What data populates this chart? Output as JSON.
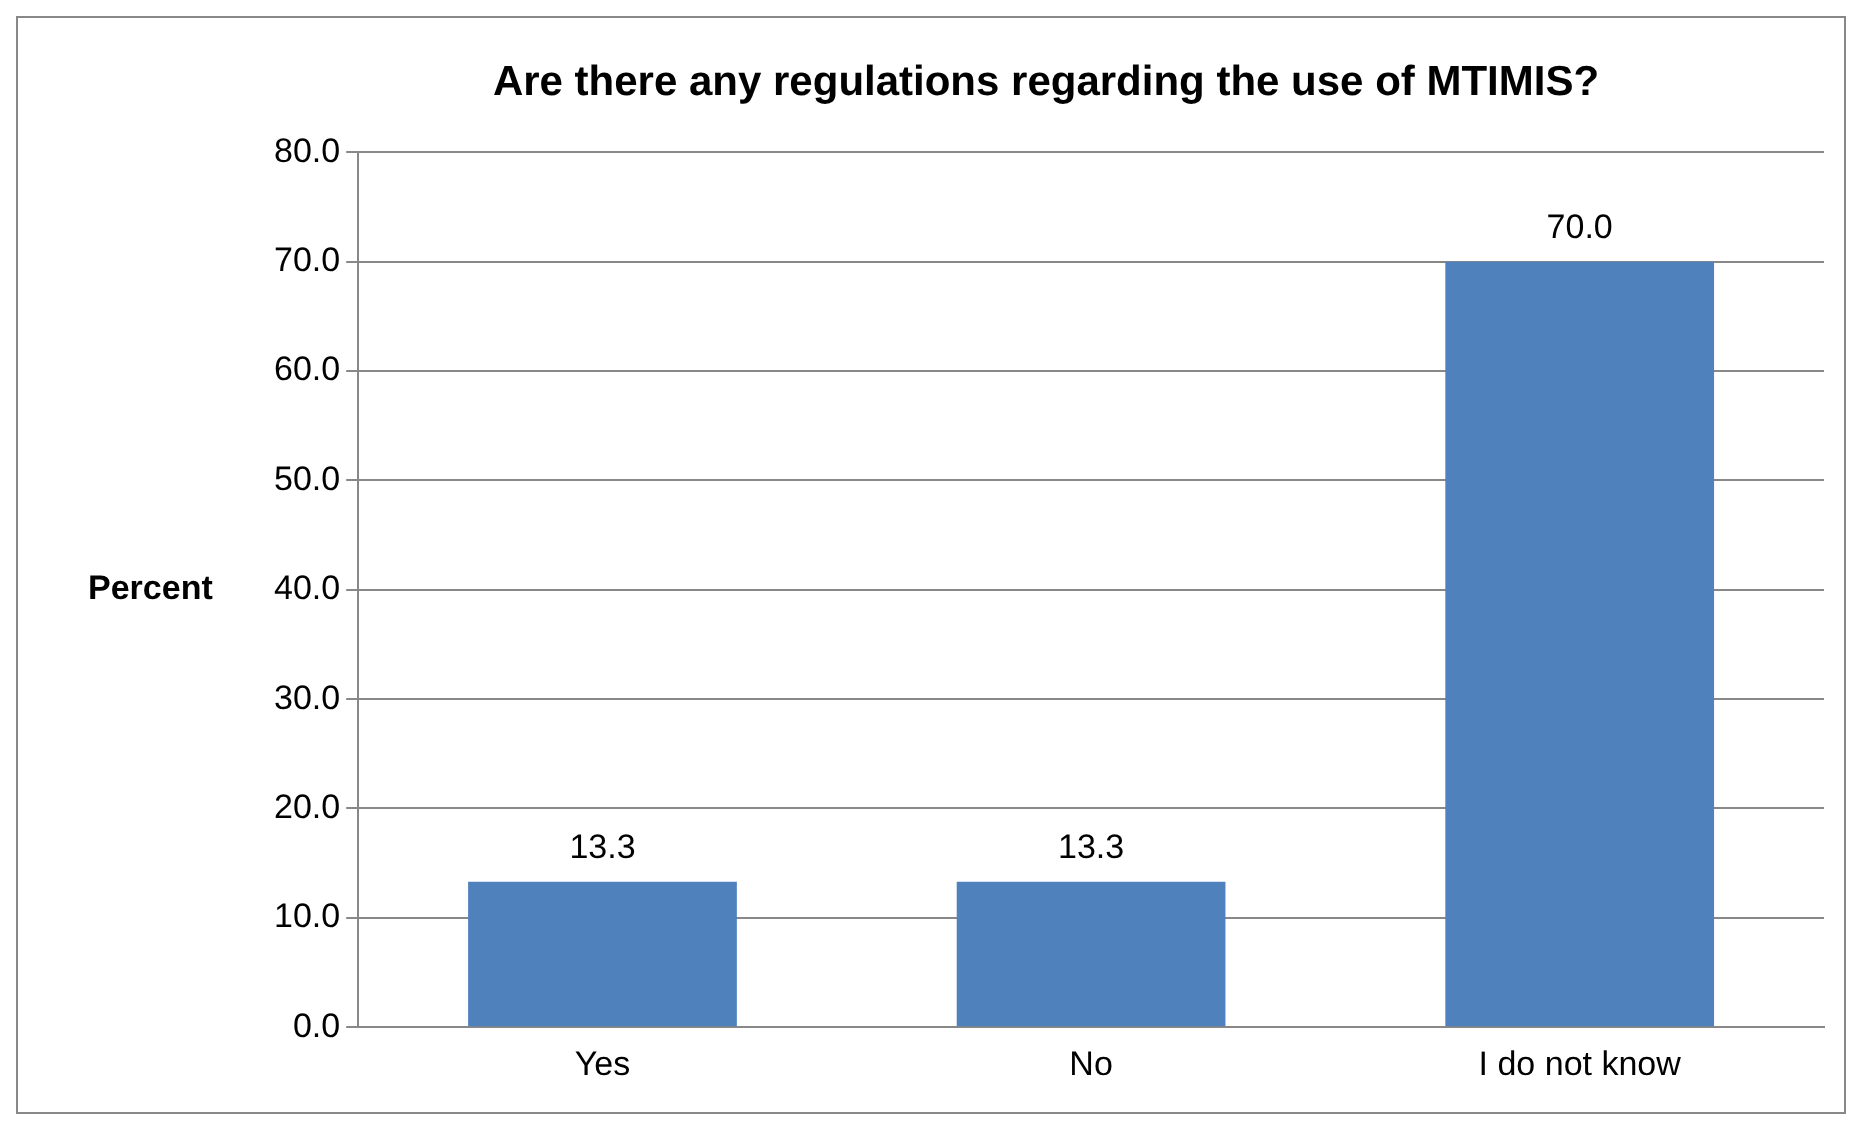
{
  "chart_data": {
    "type": "bar",
    "title": "Are there any regulations regarding the use of MTIMIS?",
    "ylabel": "Percent",
    "categories": [
      "Yes",
      "No",
      "I do not know"
    ],
    "values": [
      13.3,
      13.3,
      70.0
    ],
    "color": "#4f81bd",
    "value_labels": [
      "13.3",
      "13.3",
      "70.0"
    ],
    "ylim": [
      0,
      80
    ],
    "yticks": [
      {
        "value": 0,
        "label": "0.0"
      },
      {
        "value": 10,
        "label": "10.0"
      },
      {
        "value": 20,
        "label": "20.0"
      },
      {
        "value": 30,
        "label": "30.0"
      },
      {
        "value": 40,
        "label": "40.0"
      },
      {
        "value": 50,
        "label": "50.0"
      },
      {
        "value": 60,
        "label": "60.0"
      },
      {
        "value": 70,
        "label": "70.0"
      },
      {
        "value": 80,
        "label": "80.0"
      }
    ],
    "grid": "y",
    "legend": false
  }
}
